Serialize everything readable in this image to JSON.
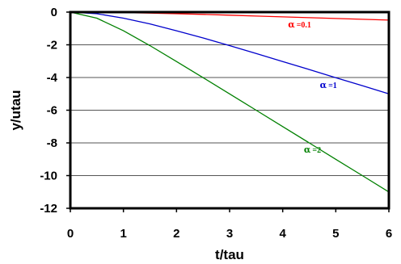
{
  "chart_data": {
    "type": "line",
    "title": "",
    "xlabel": "t/tau",
    "ylabel": "y/utau",
    "xlim": [
      0,
      6
    ],
    "ylim": [
      -12,
      0
    ],
    "x_ticks": [
      0,
      1,
      2,
      3,
      4,
      5,
      6
    ],
    "y_ticks": [
      0,
      -2,
      -4,
      -6,
      -8,
      -10,
      -12
    ],
    "x_tick_labels": [
      "0",
      "1",
      "2",
      "3",
      "4",
      "5",
      "6"
    ],
    "y_tick_labels": [
      "0",
      "-2",
      "-4",
      "-6",
      "-8",
      "-10",
      "-12"
    ],
    "grid": "horizontal",
    "legend": "none",
    "series": [
      {
        "label_symbol": "α",
        "label_value": "=0.1",
        "color": "#ff0000",
        "x": [
          0,
          0.5,
          1,
          1.5,
          2,
          2.5,
          3,
          3.5,
          4,
          4.5,
          5,
          5.5,
          6
        ],
        "y": [
          0,
          -0.01,
          -0.03,
          -0.06,
          -0.1,
          -0.14,
          -0.19,
          -0.24,
          -0.29,
          -0.34,
          -0.39,
          -0.44,
          -0.49
        ]
      },
      {
        "label_symbol": "α",
        "label_value": "=1",
        "color": "#0000cc",
        "x": [
          0,
          0.5,
          1,
          1.5,
          2,
          2.5,
          3,
          3.5,
          4,
          4.5,
          5,
          5.5,
          6
        ],
        "y": [
          0,
          -0.1,
          -0.37,
          -0.72,
          -1.14,
          -1.58,
          -2.05,
          -2.53,
          -3.02,
          -3.51,
          -4.01,
          -4.5,
          -5.0
        ]
      },
      {
        "label_symbol": "α",
        "label_value": "=2",
        "color": "#008000",
        "x": [
          0,
          0.5,
          1,
          1.5,
          2,
          2.5,
          3,
          3.5,
          4,
          4.5,
          5,
          5.5,
          6
        ],
        "y": [
          0,
          -0.37,
          -1.14,
          -2.05,
          -3.02,
          -4.01,
          -5.0,
          -6.0,
          -7.0,
          -8.0,
          -9.0,
          -10.0,
          -11.0
        ]
      }
    ]
  }
}
